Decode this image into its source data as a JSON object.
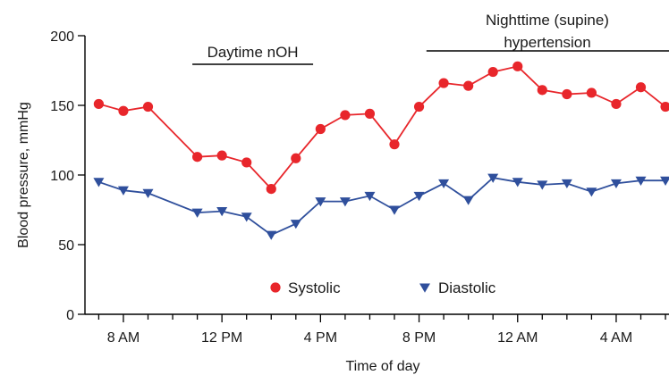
{
  "chart_data": {
    "type": "line",
    "xlabel": "Time of day",
    "ylabel": "Blood pressure, mmHg",
    "ylim": [
      0,
      200
    ],
    "yticks": [
      0,
      50,
      100,
      150,
      200
    ],
    "x_hours_offset_start": 6,
    "x_tick_labels": [
      "8 AM",
      "12 PM",
      "4 PM",
      "8 PM",
      "12 AM",
      "4 AM"
    ],
    "colors": {
      "systolic": "#e8262b",
      "diastolic": "#2f4f9c"
    },
    "series": [
      {
        "name": "Systolic",
        "marker": "circle",
        "x": [
          7,
          8,
          9,
          11,
          12,
          13,
          14,
          15,
          16,
          17,
          18,
          19,
          20,
          21,
          22,
          23,
          24,
          25,
          26,
          27,
          28,
          29,
          30
        ],
        "values": [
          151,
          146,
          149,
          113,
          114,
          109,
          90,
          112,
          133,
          143,
          144,
          122,
          149,
          166,
          164,
          174,
          178,
          161,
          158,
          159,
          151,
          163,
          149
        ]
      },
      {
        "name": "Diastolic",
        "marker": "triangle-down",
        "x": [
          7,
          8,
          9,
          11,
          12,
          13,
          14,
          15,
          16,
          17,
          18,
          19,
          20,
          21,
          22,
          23,
          24,
          25,
          26,
          27,
          28,
          29,
          30
        ],
        "values": [
          95,
          89,
          87,
          73,
          74,
          70,
          57,
          65,
          81,
          81,
          85,
          75,
          85,
          94,
          82,
          98,
          95,
          93,
          94,
          88,
          94,
          96,
          96
        ]
      }
    ],
    "annotations": [
      {
        "id": "daytime",
        "text": "Daytime nOH",
        "x_start": 10.8,
        "x_end": 15.7
      },
      {
        "id": "nighttime",
        "line1": "Nighttime (supine)",
        "line2": "hypertension",
        "x_start": 20.3,
        "x_end": 31
      }
    ],
    "legend": {
      "position": "bottom-center",
      "entries": [
        "Systolic",
        "Diastolic"
      ]
    }
  }
}
